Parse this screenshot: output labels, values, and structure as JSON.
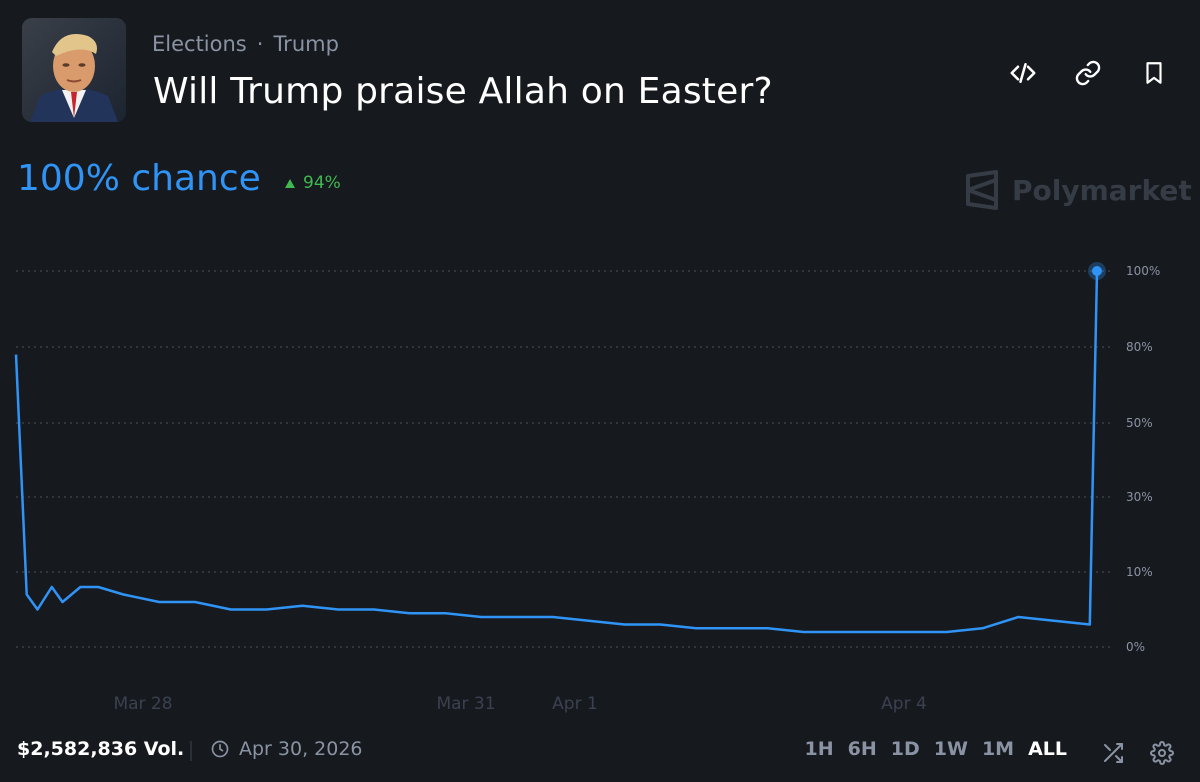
{
  "market": {
    "category": "Elections",
    "separator": "·",
    "tag": "Trump",
    "title": "Will Trump praise Allah on Easter?"
  },
  "header_icons": [
    "embed-code-icon",
    "link-icon",
    "bookmark-icon"
  ],
  "stats": {
    "chance_label": "100% chance",
    "delta": "94%",
    "delta_direction": "up"
  },
  "brand": {
    "name": "Polymarket"
  },
  "footer": {
    "volume": "$2,582,836 Vol.",
    "end_date": "Apr 30, 2026",
    "ranges": [
      "1H",
      "6H",
      "1D",
      "1W",
      "1M",
      "ALL"
    ],
    "active_range": "ALL"
  },
  "colors": {
    "background": "#16191e",
    "line": "#2f94f5",
    "up": "#3fb950",
    "muted": "#8a93a3"
  },
  "chart_data": {
    "type": "line",
    "title": "",
    "xlabel": "",
    "ylabel": "",
    "y_scale": "nonlinear",
    "y_ticks": [
      0,
      10,
      30,
      50,
      80,
      100
    ],
    "y_tick_labels": [
      "0%",
      "10%",
      "30%",
      "50%",
      "80%",
      "100%"
    ],
    "ylim": [
      0,
      100
    ],
    "grid": "dotted horizontal",
    "x_tick_labels": [
      "Mar 28",
      "Mar 31",
      "Apr 1",
      "Apr 4"
    ],
    "series": [
      {
        "values": [
          [
            0,
            77
          ],
          [
            0.3,
            7
          ],
          [
            0.6,
            5
          ],
          [
            1.0,
            8
          ],
          [
            1.3,
            6
          ],
          [
            1.8,
            8
          ],
          [
            2.3,
            8
          ],
          [
            3.0,
            7
          ],
          [
            4.0,
            6
          ],
          [
            5.0,
            6
          ],
          [
            6.0,
            5
          ],
          [
            7.0,
            5
          ],
          [
            8.0,
            5.5
          ],
          [
            9.0,
            5
          ],
          [
            10.0,
            5
          ],
          [
            11.0,
            4.5
          ],
          [
            12.0,
            4.5
          ],
          [
            13.0,
            4
          ],
          [
            14.0,
            4
          ],
          [
            15.0,
            4
          ],
          [
            16.0,
            3.5
          ],
          [
            17.0,
            3
          ],
          [
            18.0,
            3
          ],
          [
            19.0,
            2.5
          ],
          [
            20.0,
            2.5
          ],
          [
            21.0,
            2.5
          ],
          [
            22.0,
            2
          ],
          [
            23.0,
            2
          ],
          [
            24.0,
            2
          ],
          [
            25.0,
            2
          ],
          [
            26.0,
            2
          ],
          [
            27.0,
            2.5
          ],
          [
            28.0,
            4
          ],
          [
            29.0,
            3.5
          ],
          [
            30.0,
            3
          ],
          [
            30.2,
            100
          ]
        ]
      }
    ]
  }
}
